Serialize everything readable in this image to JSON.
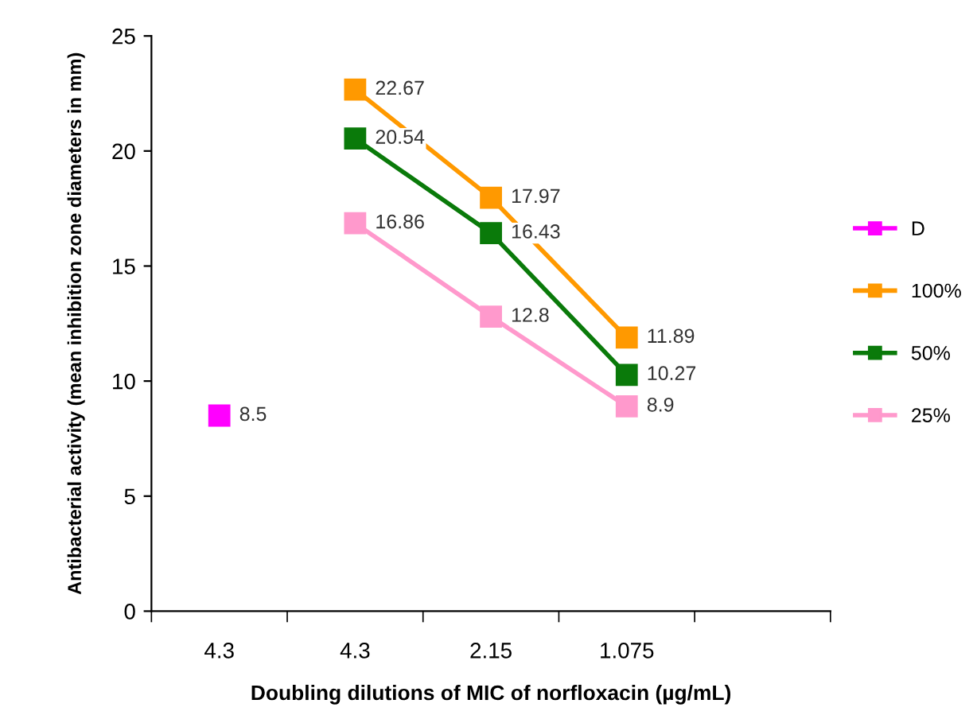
{
  "chart_data": {
    "type": "line",
    "xlabel": "Doubling dilutions of MIC of norfloxacin (µg/mL)",
    "ylabel": "Antibacterial activity (mean inhibition zone diameters in mm)",
    "categories": [
      "4.3",
      "4.3",
      "2.15",
      "1.075",
      null
    ],
    "series": [
      {
        "name": "D",
        "color": "#ff00ff",
        "values": [
          8.5,
          null,
          null,
          null,
          null
        ]
      },
      {
        "name": "100%",
        "color": "#ff9900",
        "values": [
          null,
          22.67,
          17.97,
          11.89,
          null
        ]
      },
      {
        "name": "50%",
        "color": "#0a7a0a",
        "values": [
          null,
          20.54,
          16.43,
          10.27,
          null
        ]
      },
      {
        "name": "25%",
        "color": "#ff99cc",
        "values": [
          null,
          16.86,
          12.8,
          8.9,
          null
        ]
      }
    ],
    "ylim": [
      0,
      25
    ],
    "yticks": [
      0,
      5,
      10,
      15,
      20,
      25
    ],
    "grid": false,
    "legend": "right",
    "marker": "square",
    "line_style": "solid",
    "data_labels": true
  }
}
